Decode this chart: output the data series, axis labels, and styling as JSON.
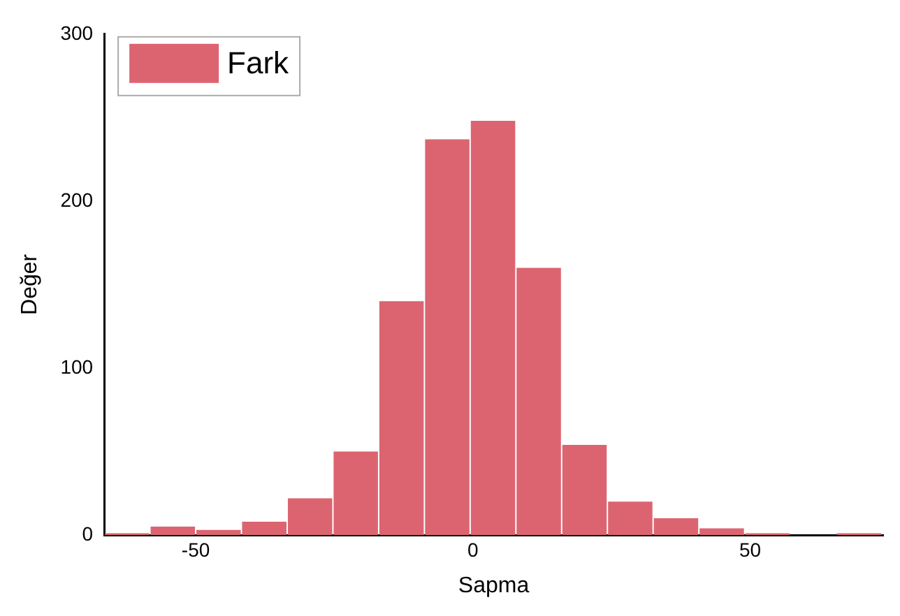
{
  "chart_data": {
    "type": "histogram",
    "xlabel": "Sapma",
    "ylabel": "Değer",
    "bins": [
      -66.5,
      -58.25,
      -50,
      -41.75,
      -33.5,
      -25.25,
      -17,
      -8.75,
      -0.5,
      7.75,
      16,
      24.25,
      32.5,
      40.75,
      49,
      57.25,
      65.5,
      73.75
    ],
    "series": [
      {
        "name": "Fark",
        "color": "#dc6470",
        "values": [
          1,
          5,
          3,
          8,
          22,
          50,
          140,
          237,
          248,
          160,
          54,
          20,
          10,
          4,
          1,
          0,
          1
        ]
      }
    ],
    "xlim": [
      -66.5,
      74
    ],
    "xticks": [
      -50,
      0,
      50
    ],
    "ylim": [
      0,
      300
    ],
    "yticks": [
      0,
      100,
      200,
      300
    ],
    "grid": false,
    "legend": "top left"
  }
}
